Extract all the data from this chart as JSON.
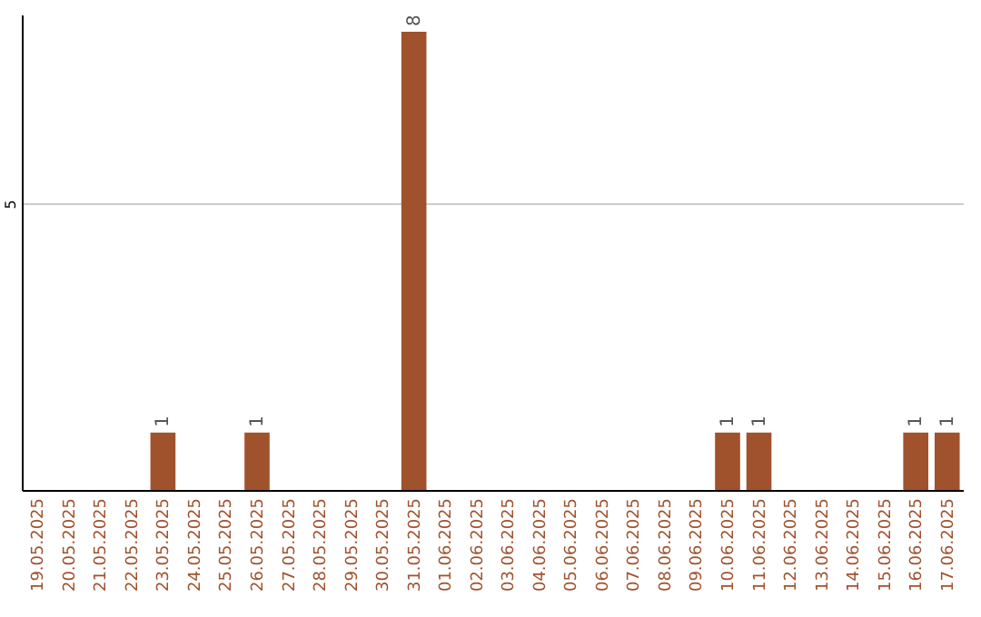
{
  "chart_data": {
    "type": "bar",
    "categories": [
      "19.05.2025",
      "20.05.2025",
      "21.05.2025",
      "22.05.2025",
      "23.05.2025",
      "24.05.2025",
      "25.05.2025",
      "26.05.2025",
      "27.05.2025",
      "28.05.2025",
      "29.05.2025",
      "30.05.2025",
      "31.05.2025",
      "01.06.2025",
      "02.06.2025",
      "03.06.2025",
      "04.06.2025",
      "05.06.2025",
      "06.06.2025",
      "07.06.2025",
      "08.06.2025",
      "09.06.2025",
      "10.06.2025",
      "11.06.2025",
      "12.06.2025",
      "13.06.2025",
      "14.06.2025",
      "15.06.2025",
      "16.06.2025",
      "17.06.2025"
    ],
    "values": [
      0,
      0,
      0,
      0,
      1,
      0,
      0,
      1,
      0,
      0,
      0,
      0,
      8,
      0,
      0,
      0,
      0,
      0,
      0,
      0,
      0,
      0,
      1,
      1,
      0,
      0,
      0,
      0,
      1,
      1
    ],
    "color": "#a0522d",
    "value_labels": [
      null,
      null,
      null,
      null,
      "1",
      null,
      null,
      "1",
      null,
      null,
      null,
      null,
      "8",
      null,
      null,
      null,
      null,
      null,
      null,
      null,
      null,
      null,
      "1",
      "1",
      null,
      null,
      null,
      null,
      "1",
      "1"
    ],
    "ylim": [
      0,
      8.3
    ],
    "yticks": [
      5
    ],
    "grid": true
  }
}
